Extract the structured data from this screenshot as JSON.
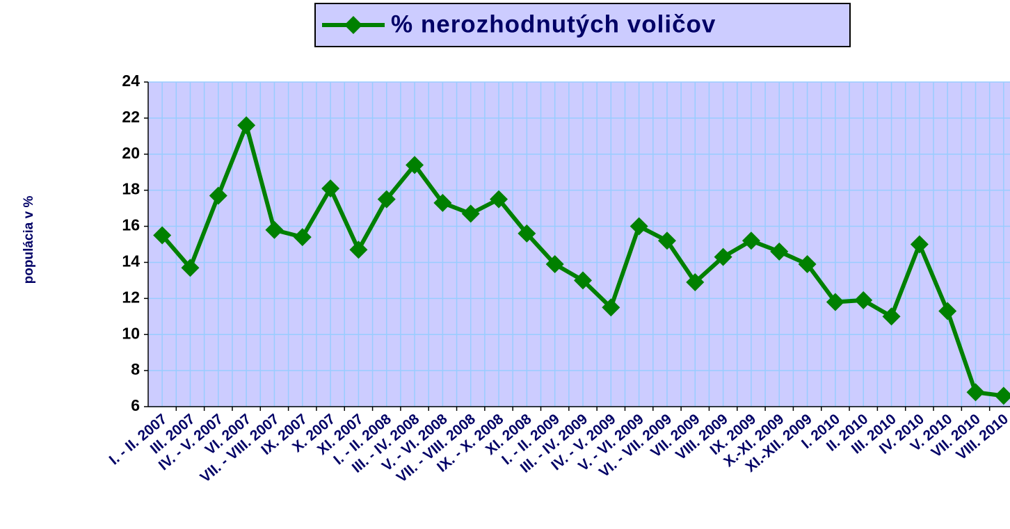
{
  "chart_data": {
    "type": "line",
    "y_label": "populácia v %",
    "categories": [
      "I. - II. 2007",
      "III. 2007",
      "IV. - V. 2007",
      "VI. 2007",
      "VII. - VIII. 2007",
      "IX. 2007",
      "X. 2007",
      "XI. 2007",
      "I. - II. 2008",
      "III. - IV. 2008",
      "V. - VI. 2008",
      "VII. - VIII. 2008",
      "IX. - X. 2008",
      "XI. 2008",
      "I. - II. 2009",
      "III. - IV. 2009",
      "IV. - V. 2009",
      "V. - VI. 2009",
      "VI. - VII. 2009",
      "VII. 2009",
      "VIII. 2009",
      "IX. 2009",
      "X.-XI. 2009",
      "XI.-XII. 2009",
      "I. 2010",
      "II. 2010",
      "III. 2010",
      "IV. 2010",
      "V. 2010",
      "VII. 2010",
      "VIII. 2010"
    ],
    "series": [
      {
        "name": "% nerozhodnutých voličov",
        "color": "#008000",
        "values": [
          15.5,
          13.7,
          17.7,
          21.6,
          15.8,
          15.4,
          18.1,
          14.7,
          17.5,
          19.4,
          17.3,
          16.7,
          17.5,
          15.6,
          13.9,
          13.0,
          11.5,
          16.0,
          15.2,
          12.9,
          14.3,
          15.2,
          14.6,
          13.9,
          11.8,
          11.9,
          11.0,
          15.0,
          11.3,
          6.8,
          6.6
        ]
      }
    ],
    "ylim": [
      6,
      24
    ],
    "yticks": [
      6,
      8,
      10,
      12,
      14,
      16,
      18,
      20,
      22,
      24
    ],
    "grid": true,
    "plot_background": "#ccccff",
    "legend": "top"
  }
}
